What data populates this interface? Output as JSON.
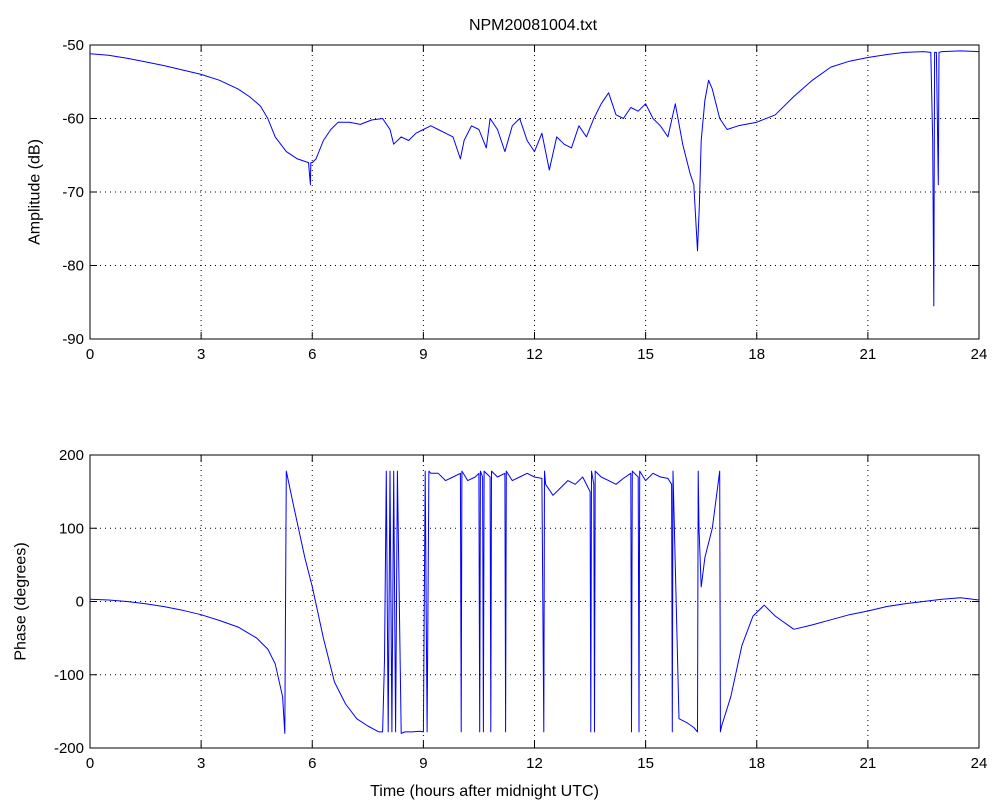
{
  "figure": {
    "title": "NPM20081004.txt"
  },
  "chart_data": [
    {
      "type": "line",
      "title": "NPM20081004.txt",
      "xlabel": "",
      "ylabel": "Amplitude (dB)",
      "xlim": [
        0,
        24
      ],
      "ylim": [
        -90,
        -50
      ],
      "xticks": [
        0,
        3,
        6,
        9,
        12,
        15,
        18,
        21,
        24
      ],
      "yticks": [
        -90,
        -80,
        -70,
        -60,
        -50
      ],
      "grid": true,
      "line_color": "#0000ff",
      "series": [
        {
          "x": [
            0,
            0.5,
            1,
            1.5,
            2,
            2.5,
            3,
            3.5,
            4,
            4.3,
            4.6,
            4.8,
            5.0,
            5.3,
            5.6,
            5.9,
            5.95,
            5.96,
            6.0,
            6.1,
            6.3,
            6.5,
            6.7,
            7.0,
            7.3,
            7.6,
            7.9,
            8.1,
            8.2,
            8.4,
            8.6,
            8.8,
            9.0,
            9.2,
            9.4,
            9.6,
            9.8,
            10.0,
            10.1,
            10.3,
            10.5,
            10.7,
            10.8,
            11.0,
            11.2,
            11.4,
            11.6,
            11.8,
            12.0,
            12.2,
            12.4,
            12.6,
            12.8,
            13.0,
            13.2,
            13.4,
            13.6,
            13.8,
            14.0,
            14.2,
            14.4,
            14.6,
            14.8,
            15.0,
            15.2,
            15.4,
            15.6,
            15.8,
            16.0,
            16.2,
            16.3,
            16.4,
            16.45,
            16.5,
            16.6,
            16.7,
            16.8,
            17.0,
            17.2,
            17.5,
            18.0,
            18.5,
            19.0,
            19.5,
            20.0,
            20.5,
            21.0,
            21.5,
            22.0,
            22.5,
            22.7,
            22.75,
            22.78,
            22.8,
            22.85,
            22.9,
            22.92,
            23.0,
            23.5,
            24
          ],
          "y": [
            -51.2,
            -51.4,
            -51.8,
            -52.3,
            -52.8,
            -53.4,
            -54.0,
            -54.8,
            -56.0,
            -57.0,
            -58.3,
            -60.0,
            -62.5,
            -64.5,
            -65.5,
            -66.0,
            -69.0,
            -66.0,
            -66.0,
            -65.5,
            -63.0,
            -61.5,
            -60.5,
            -60.5,
            -60.8,
            -60.2,
            -60.0,
            -61.5,
            -63.5,
            -62.5,
            -63.0,
            -62.0,
            -61.5,
            -61.0,
            -61.5,
            -62.0,
            -62.5,
            -65.5,
            -63.0,
            -61.0,
            -61.5,
            -64.0,
            -60.0,
            -61.5,
            -64.5,
            -61.0,
            -60.0,
            -63.0,
            -64.5,
            -62.0,
            -67.0,
            -62.5,
            -63.5,
            -64.0,
            -61.0,
            -62.5,
            -60.0,
            -58.0,
            -56.5,
            -59.5,
            -60.0,
            -58.5,
            -59.0,
            -58.0,
            -60.0,
            -61.0,
            -62.5,
            -58.0,
            -63.5,
            -67.5,
            -69.0,
            -78.0,
            -72.0,
            -63.0,
            -57.5,
            -54.8,
            -56.0,
            -60.0,
            -61.5,
            -61.0,
            -60.5,
            -59.5,
            -57.0,
            -54.8,
            -53.0,
            -52.2,
            -51.7,
            -51.3,
            -51.0,
            -50.9,
            -51.0,
            -63.0,
            -85.5,
            -51.0,
            -51.0,
            -69.0,
            -51.0,
            -50.9,
            -50.8,
            -50.9
          ]
        }
      ]
    },
    {
      "type": "line",
      "title": "",
      "xlabel": "Time (hours after midnight UTC)",
      "ylabel": "Phase (degrees)",
      "xlim": [
        0,
        24
      ],
      "ylim": [
        -200,
        200
      ],
      "xticks": [
        0,
        3,
        6,
        9,
        12,
        15,
        18,
        21,
        24
      ],
      "yticks": [
        -200,
        -100,
        0,
        100,
        200
      ],
      "grid": true,
      "line_color": "#0000ff",
      "series": [
        {
          "x": [
            0,
            0.5,
            1,
            1.5,
            2,
            2.5,
            3,
            3.5,
            4,
            4.5,
            4.8,
            5.0,
            5.2,
            5.26,
            5.3,
            5.5,
            5.8,
            6.0,
            6.3,
            6.6,
            6.9,
            7.2,
            7.5,
            7.8,
            7.9,
            7.95,
            8.0,
            8.05,
            8.1,
            8.15,
            8.2,
            8.25,
            8.3,
            8.4,
            8.5,
            8.7,
            8.9,
            9.0,
            9.05,
            9.1,
            9.15,
            9.2,
            9.4,
            9.6,
            9.8,
            10.0,
            10.02,
            10.04,
            10.2,
            10.4,
            10.5,
            10.52,
            10.54,
            10.6,
            10.62,
            10.64,
            10.8,
            10.82,
            10.84,
            11.0,
            11.2,
            11.22,
            11.24,
            11.4,
            11.6,
            11.8,
            12.0,
            12.2,
            12.25,
            12.27,
            12.3,
            12.5,
            12.7,
            12.9,
            13.1,
            13.3,
            13.5,
            13.52,
            13.54,
            13.6,
            13.62,
            13.64,
            13.8,
            14.0,
            14.2,
            14.4,
            14.6,
            14.62,
            14.64,
            14.8,
            14.82,
            14.84,
            15.0,
            15.2,
            15.4,
            15.6,
            15.7,
            15.72,
            15.74,
            15.9,
            16.1,
            16.3,
            16.4,
            16.42,
            16.44,
            16.5,
            16.6,
            16.8,
            17.0,
            17.02,
            17.05,
            17.3,
            17.6,
            17.9,
            18.2,
            18.5,
            19.0,
            19.5,
            20.0,
            20.5,
            21.0,
            21.5,
            22.0,
            22.5,
            23.0,
            23.5,
            24
          ],
          "y": [
            3,
            2,
            0,
            -3,
            -7,
            -12,
            -18,
            -26,
            -35,
            -50,
            -65,
            -85,
            -130,
            -180,
            178,
            130,
            60,
            20,
            -50,
            -110,
            -140,
            -160,
            -170,
            -178,
            -178,
            -80,
            178,
            -178,
            178,
            -178,
            178,
            -178,
            178,
            -180,
            -178,
            -178,
            -177,
            -178,
            178,
            -178,
            178,
            175,
            175,
            165,
            170,
            175,
            -178,
            178,
            165,
            170,
            175,
            -178,
            178,
            170,
            -178,
            178,
            170,
            -178,
            178,
            170,
            175,
            -178,
            178,
            165,
            170,
            175,
            170,
            168,
            -178,
            178,
            160,
            145,
            155,
            165,
            160,
            170,
            150,
            -178,
            178,
            160,
            -178,
            178,
            170,
            165,
            160,
            168,
            175,
            -178,
            178,
            170,
            -178,
            178,
            165,
            175,
            170,
            168,
            160,
            -178,
            178,
            -160,
            -165,
            -172,
            -178,
            178,
            100,
            20,
            60,
            100,
            178,
            -178,
            -170,
            -130,
            -60,
            -20,
            -5,
            -20,
            -38,
            -32,
            -25,
            -18,
            -13,
            -7,
            -3,
            0,
            3,
            5,
            2
          ]
        }
      ]
    }
  ]
}
